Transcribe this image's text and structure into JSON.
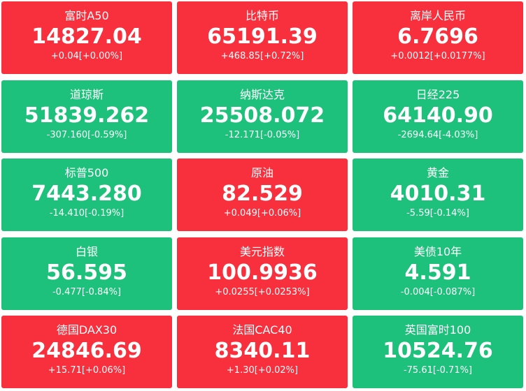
{
  "tiles": [
    {
      "name": "富时A50",
      "price": "14827.04",
      "change": "+0.04[+0.00%]",
      "color": "#f82f3d"
    },
    {
      "name": "比特币",
      "price": "65191.39",
      "change": "+468.85[+0.72%]",
      "color": "#f82f3d"
    },
    {
      "name": "离岸人民币",
      "price": "6.7696",
      "change": "+0.0012[+0.0177%]",
      "color": "#f82f3d"
    },
    {
      "name": "道琼斯",
      "price": "51839.262",
      "change": "-307.160[-0.59%]",
      "color": "#1ec17b"
    },
    {
      "name": "纳斯达克",
      "price": "25508.072",
      "change": "-12.171[-0.05%]",
      "color": "#1ec17b"
    },
    {
      "name": "日经225",
      "price": "64140.90",
      "change": "-2694.64[-4.03%]",
      "color": "#1ec17b"
    },
    {
      "name": "标普500",
      "price": "7443.280",
      "change": "-14.410[-0.19%]",
      "color": "#1ec17b"
    },
    {
      "name": "原油",
      "price": "82.529",
      "change": "+0.049[+0.06%]",
      "color": "#f82f3d"
    },
    {
      "name": "黄金",
      "price": "4010.31",
      "change": "-5.59[-0.14%]",
      "color": "#1ec17b"
    },
    {
      "name": "白银",
      "price": "56.595",
      "change": "-0.477[-0.84%]",
      "color": "#1ec17b"
    },
    {
      "name": "美元指数",
      "price": "100.9936",
      "change": "+0.0255[+0.0253%]",
      "color": "#f82f3d"
    },
    {
      "name": "美债10年",
      "price": "4.591",
      "change": "-0.004[-0.087%]",
      "color": "#1ec17b"
    },
    {
      "name": "德国DAX30",
      "price": "24846.69",
      "change": "+15.71[+0.06%]",
      "color": "#f82f3d"
    },
    {
      "name": "法国CAC40",
      "price": "8340.11",
      "change": "+1.30[+0.02%]",
      "color": "#f82f3d"
    },
    {
      "name": "英国富时100",
      "price": "10524.76",
      "change": "-75.61[-0.71%]",
      "color": "#1ec17b"
    }
  ]
}
